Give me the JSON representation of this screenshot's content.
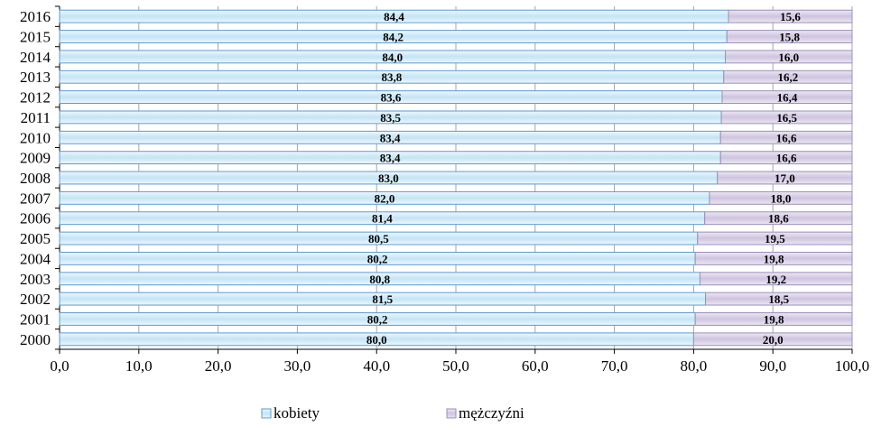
{
  "chart_data": {
    "type": "bar",
    "orientation": "horizontal",
    "stacked": true,
    "categories": [
      "2000",
      "2001",
      "2002",
      "2003",
      "2004",
      "2005",
      "2006",
      "2007",
      "2008",
      "2009",
      "2010",
      "2011",
      "2012",
      "2013",
      "2014",
      "2015",
      "2016"
    ],
    "series": [
      {
        "name": "kobiety",
        "color": "#d4ecf8",
        "edge_color": "#5b9bd5",
        "values": [
          80.0,
          80.2,
          81.5,
          80.8,
          80.2,
          80.5,
          81.4,
          82.0,
          83.0,
          83.4,
          83.4,
          83.5,
          83.6,
          83.8,
          84.0,
          84.2,
          84.4
        ],
        "labels": [
          "80,0",
          "80,2",
          "81,5",
          "80,8",
          "80,2",
          "80,5",
          "81,4",
          "82,0",
          "83,0",
          "83,4",
          "83,4",
          "83,5",
          "83,6",
          "83,8",
          "84,0",
          "84,2",
          "84,4"
        ]
      },
      {
        "name": "mężczyźni",
        "color": "#dcd3e8",
        "edge_color": "#9b8fb8",
        "values": [
          20.0,
          19.8,
          18.5,
          19.2,
          19.8,
          19.5,
          18.6,
          18.0,
          17.0,
          16.6,
          16.6,
          16.5,
          16.4,
          16.2,
          16.0,
          15.8,
          15.6
        ],
        "labels": [
          "20,0",
          "19,8",
          "18,5",
          "19,2",
          "19,8",
          "19,5",
          "18,6",
          "18,0",
          "17,0",
          "16,6",
          "16,6",
          "16,5",
          "16,4",
          "16,2",
          "16,0",
          "15,8",
          "15,6"
        ]
      }
    ],
    "xlim": [
      0,
      100
    ],
    "x_ticks": [
      0,
      10,
      20,
      30,
      40,
      50,
      60,
      70,
      80,
      90,
      100
    ],
    "x_tick_labels": [
      "0,0",
      "10,0",
      "20,0",
      "30,0",
      "40,0",
      "50,0",
      "60,0",
      "70,0",
      "80,0",
      "90,0",
      "100,0"
    ],
    "grid": true,
    "legend_position": "bottom",
    "title": "",
    "xlabel": "",
    "ylabel": ""
  }
}
